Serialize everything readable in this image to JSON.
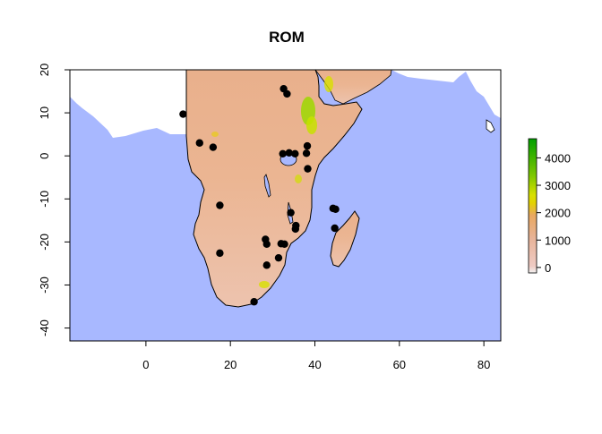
{
  "title": "ROM",
  "colors": {
    "ocean": "#A8B8FF",
    "land_low": "#F2E0DA",
    "land_mid": "#E9B08C",
    "land_high": "#E8E000",
    "land_top": "#00A000",
    "point": "#000000",
    "coast": "#000000"
  },
  "chart_data": {
    "type": "scatter",
    "xlim": [
      -18,
      84
    ],
    "ylim": [
      -43,
      20
    ],
    "x_ticks": [
      0,
      20,
      40,
      60,
      80
    ],
    "y_ticks": [
      -40,
      -30,
      -20,
      -10,
      0,
      10,
      20
    ],
    "x_tick_labels": [
      "0",
      "20",
      "40",
      "60",
      "80"
    ],
    "y_tick_labels": [
      "-40",
      "-30",
      "-20",
      "-10",
      "0",
      "10",
      "20"
    ],
    "legend": {
      "placement": "right",
      "range": [
        -200,
        4700
      ],
      "ticks": [
        0,
        1000,
        2000,
        3000,
        4000
      ],
      "tick_labels": [
        "0",
        "1000",
        "2000",
        "3000",
        "4000"
      ]
    },
    "points": [
      {
        "x": 8.8,
        "y": 9.7
      },
      {
        "x": 12.7,
        "y": 3.0
      },
      {
        "x": 15.9,
        "y": 2.0
      },
      {
        "x": 32.6,
        "y": 15.6
      },
      {
        "x": 33.4,
        "y": 14.4
      },
      {
        "x": 32.4,
        "y": 0.5
      },
      {
        "x": 33.9,
        "y": 0.7
      },
      {
        "x": 35.3,
        "y": 0.5
      },
      {
        "x": 38.2,
        "y": 2.3
      },
      {
        "x": 38.0,
        "y": 0.6
      },
      {
        "x": 38.3,
        "y": -3.0
      },
      {
        "x": 17.5,
        "y": -11.5
      },
      {
        "x": 34.3,
        "y": -13.2
      },
      {
        "x": 35.5,
        "y": -16.2
      },
      {
        "x": 35.4,
        "y": -17.0
      },
      {
        "x": 44.3,
        "y": -12.2
      },
      {
        "x": 44.9,
        "y": -12.4
      },
      {
        "x": 44.7,
        "y": -16.8
      },
      {
        "x": 28.3,
        "y": -19.4
      },
      {
        "x": 28.6,
        "y": -20.5
      },
      {
        "x": 32.0,
        "y": -20.4
      },
      {
        "x": 32.8,
        "y": -20.5
      },
      {
        "x": 17.5,
        "y": -22.6
      },
      {
        "x": 31.4,
        "y": -23.7
      },
      {
        "x": 28.6,
        "y": -25.4
      },
      {
        "x": 25.6,
        "y": -33.9
      }
    ]
  }
}
